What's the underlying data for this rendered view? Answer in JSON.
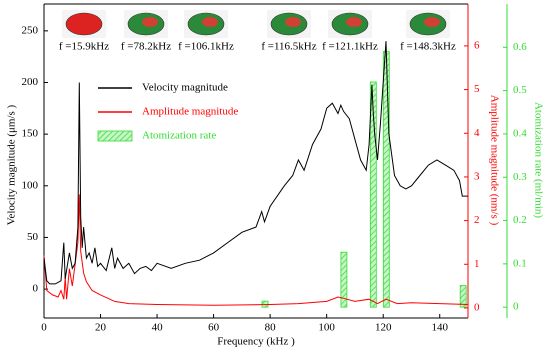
{
  "chart_data": {
    "type": "line",
    "xlabel": "Frequency (kHz )",
    "ylabel": "Velocity magnitude (μm/s )",
    "y2label": "Amplitude magnitude (nm/s )",
    "y3label": "Atomization rate (ml/min)",
    "xlim": [
      0,
      150
    ],
    "xticks": [
      0,
      20,
      40,
      60,
      80,
      100,
      120,
      140
    ],
    "ylim": [
      -28,
      276
    ],
    "yticks": [
      0,
      50,
      100,
      150,
      200,
      250
    ],
    "y2lim": [
      -0.23,
      6.96
    ],
    "y2ticks": [
      0,
      1,
      2,
      3,
      4,
      5,
      6
    ],
    "y2color": "#ff0000",
    "y3lim": [
      -0.025,
      0.7
    ],
    "y3ticks": [
      0,
      0.1,
      0.2,
      0.3,
      0.4,
      0.5,
      0.6
    ],
    "y3color": "#33dd33",
    "insets": [
      {
        "label": "f =15.9kHz"
      },
      {
        "label": "f =78.2kHz"
      },
      {
        "label": "f =106.1kHz"
      },
      {
        "label": "f =116.5kHz"
      },
      {
        "label": "f =121.1kHz"
      },
      {
        "label": "f =148.3kHz"
      }
    ],
    "series": [
      {
        "name": "Velocity magnitude",
        "color": "#000000",
        "type": "line",
        "x": [
          0,
          1,
          2,
          4,
          6,
          7,
          7.5,
          9,
          10,
          11,
          12,
          12.5,
          13,
          13.5,
          14,
          15,
          16,
          17,
          18,
          19,
          20,
          22,
          24,
          25,
          26,
          28,
          30,
          32,
          34,
          36,
          38,
          40,
          45,
          50,
          55,
          60,
          65,
          70,
          75,
          77,
          78,
          80,
          85,
          88,
          90,
          92,
          95,
          98,
          100,
          102,
          104,
          105,
          106,
          108,
          110,
          112,
          114,
          115,
          116,
          116.5,
          117,
          118,
          119,
          120,
          121,
          121.5,
          122,
          124,
          126,
          128,
          130,
          133,
          136,
          139,
          142,
          145,
          147,
          148,
          150
        ],
        "values": [
          30,
          8,
          5,
          5,
          8,
          45,
          10,
          35,
          20,
          25,
          60,
          200,
          70,
          40,
          60,
          30,
          35,
          25,
          40,
          22,
          25,
          18,
          40,
          20,
          30,
          20,
          25,
          15,
          20,
          22,
          18,
          25,
          20,
          25,
          28,
          35,
          45,
          55,
          60,
          75,
          65,
          80,
          100,
          110,
          125,
          115,
          140,
          155,
          175,
          180,
          170,
          178,
          172,
          165,
          145,
          125,
          115,
          140,
          198,
          170,
          150,
          125,
          160,
          200,
          240,
          195,
          150,
          110,
          100,
          97,
          100,
          110,
          120,
          125,
          120,
          115,
          105,
          90,
          90
        ]
      },
      {
        "name": "Amplitude magnitude",
        "color": "#ff0000",
        "type": "line",
        "axis": "y2",
        "x": [
          0,
          1,
          3,
          5,
          6,
          7,
          7.5,
          8,
          9,
          10,
          11,
          12,
          12.5,
          13,
          14,
          15,
          17,
          20,
          25,
          30,
          40,
          60,
          80,
          90,
          100,
          104,
          106,
          110,
          115,
          118,
          121,
          125,
          130,
          140,
          150
        ],
        "values": [
          1.2,
          0.4,
          0.3,
          0.25,
          0.4,
          0.2,
          0.7,
          0.2,
          0.9,
          0.5,
          1.0,
          1.5,
          2.6,
          1.3,
          0.8,
          0.6,
          0.4,
          0.3,
          0.15,
          0.1,
          0.08,
          0.06,
          0.08,
          0.1,
          0.15,
          0.25,
          0.22,
          0.15,
          0.2,
          0.1,
          0.2,
          0.1,
          0.12,
          0.1,
          0.08
        ]
      },
      {
        "name": "Atomization rate",
        "color": "#33dd33",
        "type": "bar",
        "axis": "y3",
        "x": [
          78.2,
          106.1,
          116.5,
          121.1,
          148.3
        ],
        "values": [
          0.014,
          0.127,
          0.52,
          0.59,
          0.05
        ]
      }
    ]
  }
}
